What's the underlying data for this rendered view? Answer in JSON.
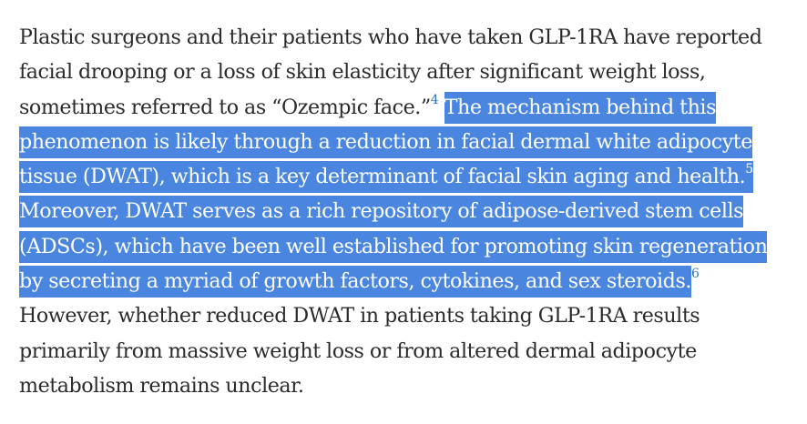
{
  "paragraph": {
    "text_before": "Plastic surgeons and their patients who have taken GLP-1RA have reported facial drooping or a loss of skin elasticity after significant weight loss, sometimes referred to as “Ozempic face.”",
    "ref_1": "4",
    "selected_text_1": "The mechanism behind this phenomenon is likely through a reduction in facial dermal white adipocyte tissue (DWAT), which is a key determinant of facial skin aging and health.",
    "ref_2": "5",
    "selected_text_2": "Moreover, DWAT serves as a rich repository of adipose-derived stem cells (ADSCs), which have been well established for promoting skin regeneration by secreting a myriad of growth factors, cytokines, and sex steroids.",
    "ref_3": "6",
    "text_after": "However, whether reduced DWAT in patients taking GLP-1RA results primarily from massive weight loss or from altered dermal adipocyte metabolism remains unclear."
  },
  "colors": {
    "selection_background": "#4a86df",
    "selection_text": "#ffffff",
    "body_text": "#2b2b2b",
    "citation_link": "#2f6fc4"
  }
}
